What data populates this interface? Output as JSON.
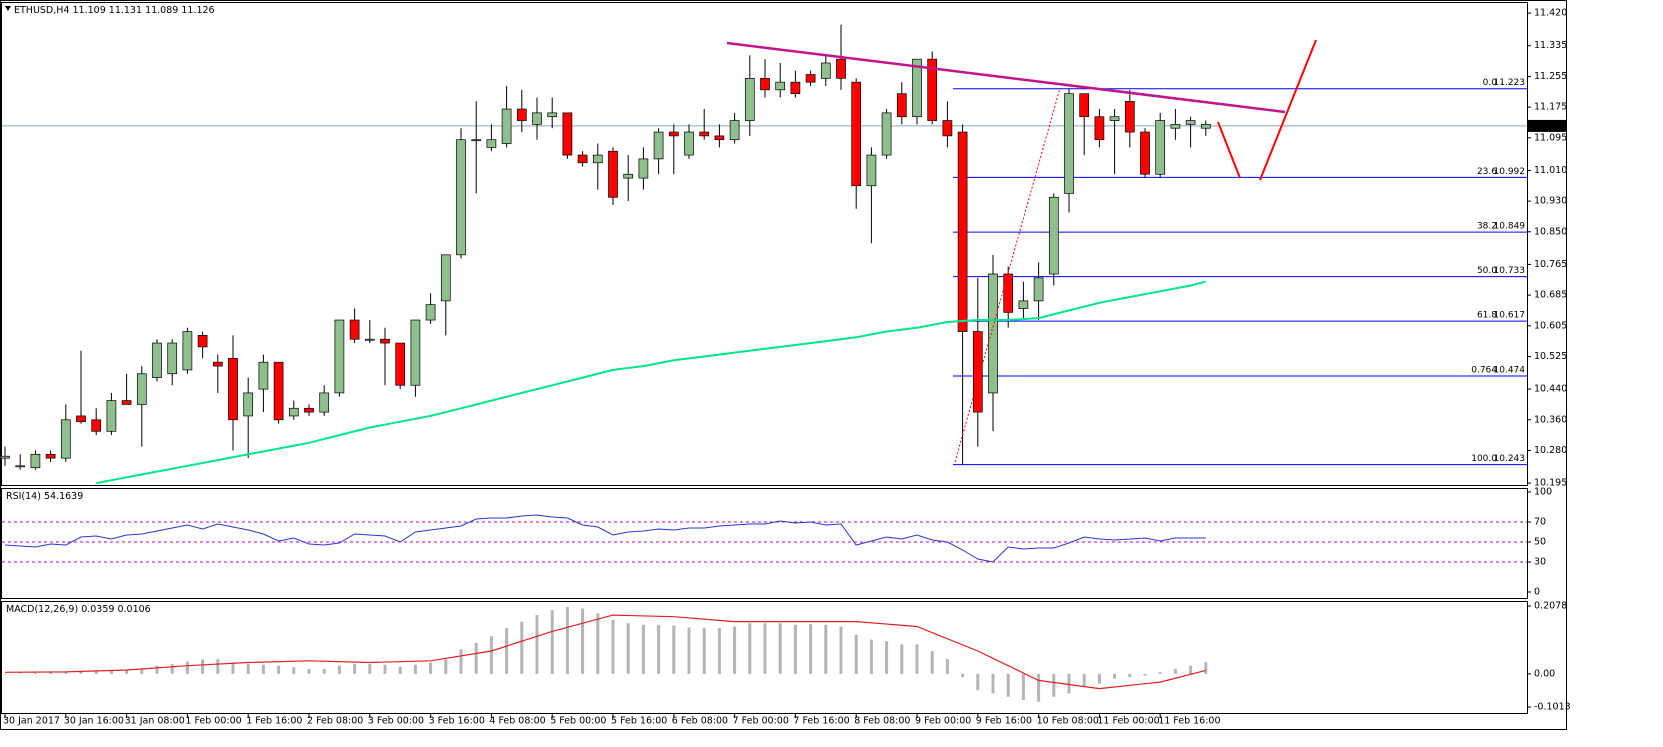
{
  "chart_data": [
    {
      "type": "candlestick",
      "symbol": "ETHUSD,H4",
      "header_ohlc": [
        11.109,
        11.131,
        11.089,
        11.126
      ],
      "categories": [
        "30 Jan 2017",
        null,
        null,
        null,
        "30 Jan 16:00",
        null,
        null,
        null,
        "31 Jan 08:00",
        null,
        null,
        null,
        "1 Feb 00:00",
        null,
        null,
        null,
        "1 Feb 16:00",
        null,
        null,
        null,
        "2 Feb 08:00",
        null,
        null,
        null,
        "3 Feb 00:00",
        null,
        null,
        null,
        "3 Feb 16:00",
        null,
        null,
        null,
        "4 Feb 08:00",
        null,
        null,
        null,
        "5 Feb 00:00",
        null,
        null,
        null,
        "5 Feb 16:00",
        null,
        null,
        null,
        "6 Feb 08:00",
        null,
        null,
        null,
        "7 Feb 00:00",
        null,
        null,
        null,
        "7 Feb 16:00",
        null,
        null,
        null,
        "8 Feb 08:00",
        null,
        null,
        null,
        "9 Feb 00:00",
        null,
        null,
        null,
        "9 Feb 16:00",
        null,
        null,
        null,
        "10 Feb 08:00",
        null,
        null,
        null,
        "11 Feb 00:00",
        null,
        null,
        null,
        "11 Feb 16:00",
        null,
        null,
        null
      ],
      "open": [
        10.26,
        10.24,
        10.235,
        10.27,
        10.26,
        10.37,
        10.36,
        10.33,
        10.41,
        10.4,
        10.47,
        10.48,
        10.49,
        10.58,
        10.51,
        10.52,
        10.37,
        10.44,
        10.51,
        10.37,
        10.39,
        10.38,
        10.43,
        10.62,
        10.57,
        10.57,
        10.56,
        10.45,
        10.62,
        10.67,
        10.79,
        11.09,
        11.07,
        11.08,
        11.17,
        11.13,
        11.15,
        11.16,
        11.05,
        11.03,
        11.06,
        10.99,
        10.99,
        11.04,
        11.11,
        11.05,
        11.11,
        11.1,
        11.09,
        11.14,
        11.25,
        11.22,
        11.24,
        11.26,
        11.25,
        11.3,
        11.24,
        10.97,
        11.05,
        11.21,
        11.15,
        11.3,
        11.14,
        11.11,
        10.59,
        10.43,
        10.74,
        10.65,
        10.67,
        10.74,
        10.95,
        11.21,
        11.15,
        11.14,
        11.19,
        11.11,
        11.0,
        11.12,
        11.13,
        11.12
      ],
      "high": [
        10.29,
        10.27,
        10.28,
        10.28,
        10.4,
        10.54,
        10.39,
        10.43,
        10.48,
        10.5,
        10.57,
        10.57,
        10.6,
        10.59,
        10.53,
        10.58,
        10.47,
        10.53,
        10.51,
        10.41,
        10.4,
        10.45,
        10.62,
        10.65,
        10.62,
        10.6,
        10.56,
        10.62,
        10.69,
        10.79,
        11.12,
        11.19,
        11.13,
        11.23,
        11.22,
        11.2,
        11.2,
        11.16,
        11.06,
        11.08,
        11.07,
        11.05,
        11.07,
        11.12,
        11.13,
        11.13,
        11.17,
        11.13,
        11.16,
        11.31,
        11.3,
        11.29,
        11.27,
        11.27,
        11.31,
        11.39,
        11.25,
        11.07,
        11.17,
        11.24,
        11.3,
        11.32,
        11.19,
        11.13,
        10.73,
        10.79,
        10.76,
        10.72,
        10.77,
        10.95,
        11.223,
        11.21,
        11.17,
        11.17,
        11.22,
        11.12,
        11.16,
        11.17,
        11.15,
        11.14
      ],
      "low": [
        10.24,
        10.23,
        10.23,
        10.25,
        10.25,
        10.35,
        10.32,
        10.32,
        10.4,
        10.29,
        10.46,
        10.45,
        10.48,
        10.52,
        10.43,
        10.28,
        10.26,
        10.38,
        10.35,
        10.36,
        10.37,
        10.37,
        10.42,
        10.56,
        10.56,
        10.45,
        10.44,
        10.42,
        10.61,
        10.58,
        10.78,
        10.95,
        11.06,
        11.07,
        11.11,
        11.09,
        11.12,
        11.04,
        11.02,
        10.96,
        10.92,
        10.93,
        10.96,
        11.0,
        11.0,
        11.04,
        11.09,
        11.07,
        11.08,
        11.1,
        11.2,
        11.2,
        11.2,
        11.23,
        11.23,
        11.22,
        10.91,
        10.82,
        11.04,
        11.13,
        11.13,
        11.13,
        11.07,
        10.243,
        10.29,
        10.33,
        10.6,
        10.62,
        10.62,
        10.71,
        10.9,
        11.05,
        11.07,
        11.0,
        11.07,
        10.99,
        10.99,
        11.09,
        11.07,
        11.1
      ],
      "close": [
        10.265,
        10.24,
        10.27,
        10.26,
        10.36,
        10.355,
        10.33,
        10.41,
        10.4,
        10.48,
        10.56,
        10.56,
        10.59,
        10.55,
        10.5,
        10.36,
        10.43,
        10.51,
        10.36,
        10.39,
        10.38,
        10.43,
        10.62,
        10.57,
        10.57,
        10.56,
        10.45,
        10.62,
        10.66,
        10.79,
        11.09,
        11.09,
        11.09,
        11.17,
        11.14,
        11.16,
        11.16,
        11.05,
        11.03,
        11.05,
        10.94,
        11.0,
        11.04,
        11.11,
        11.1,
        11.11,
        11.1,
        11.09,
        11.14,
        11.25,
        11.22,
        11.24,
        11.21,
        11.24,
        11.29,
        11.25,
        10.97,
        11.05,
        11.16,
        11.15,
        11.3,
        11.14,
        11.1,
        10.59,
        10.38,
        10.74,
        10.64,
        10.67,
        10.73,
        10.94,
        11.21,
        11.15,
        11.09,
        11.15,
        11.11,
        11.0,
        11.14,
        11.13,
        11.14,
        11.13
      ],
      "bull_color": "#8fbf8f",
      "bear_color": "#ff0000",
      "ylim": [
        10.19,
        11.449
      ],
      "yticks": [
        {
          "value": 11.42,
          "label": "11.420"
        },
        11.335,
        11.255,
        11.175,
        11.095,
        {
          "value": 11.01,
          "label": "11.010"
        },
        {
          "value": 10.93,
          "label": "10.930"
        },
        {
          "value": 10.85,
          "label": "10.850"
        },
        10.765,
        10.685,
        10.605,
        10.525,
        {
          "value": 10.44,
          "label": "10.440"
        },
        {
          "value": 10.36,
          "label": "10.360"
        },
        {
          "value": 10.28,
          "label": "10.280"
        },
        10.195
      ],
      "last_price": 11.126,
      "ma": {
        "color": "#00e68a",
        "x": [
          6,
          8,
          10,
          12,
          14,
          16,
          18,
          20,
          22,
          24,
          26,
          28,
          30,
          32,
          34,
          36,
          38,
          40,
          42,
          44,
          46,
          48,
          50,
          52,
          54,
          56,
          58,
          60,
          62,
          64,
          66,
          68,
          70,
          72,
          74,
          76,
          78,
          79
        ],
        "values": [
          10.195,
          10.21,
          10.225,
          10.24,
          10.255,
          10.27,
          10.285,
          10.3,
          10.32,
          10.34,
          10.355,
          10.37,
          10.39,
          10.41,
          10.43,
          10.45,
          10.47,
          10.49,
          10.5,
          10.515,
          10.525,
          10.535,
          10.545,
          10.555,
          10.565,
          10.575,
          10.59,
          10.6,
          10.615,
          10.62,
          10.62,
          10.625,
          10.645,
          10.665,
          10.68,
          10.695,
          10.71,
          10.72
        ]
      },
      "fib_color": "#0000ff",
      "fib": [
        {
          "level": "0.0",
          "value": 11.223
        },
        {
          "level": "23.6",
          "value": 10.992
        },
        {
          "level": "38.2",
          "value": 10.849
        },
        {
          "level": "50.0",
          "value": 10.733
        },
        {
          "level": "61.8",
          "value": 10.617
        },
        {
          "level": "0.764",
          "value": 10.474
        },
        {
          "level": "100.0",
          "value": 10.243
        }
      ]
    },
    {
      "type": "line",
      "title": "RSI(14)",
      "last_value": 54.1639,
      "color": "#2a35d0",
      "values": [
        47,
        46,
        45,
        48,
        47,
        55,
        56,
        53,
        57,
        58,
        61,
        64,
        67,
        63,
        68,
        65,
        62,
        58,
        51,
        54,
        48,
        47,
        49,
        58,
        57,
        56,
        50,
        60,
        62,
        64,
        66,
        73,
        74,
        74,
        76,
        77,
        75,
        74,
        67,
        65,
        57,
        60,
        61,
        63,
        62,
        64,
        64,
        66,
        67,
        68,
        68,
        71,
        69,
        70,
        67,
        68,
        47,
        51,
        55,
        53,
        57,
        52,
        50,
        42,
        33,
        30,
        45,
        43,
        44,
        44,
        49,
        55,
        53,
        52,
        53,
        54,
        51,
        54,
        54,
        54
      ],
      "ylim": [
        -6,
        104
      ],
      "yticks": [
        0,
        30,
        50,
        70,
        100
      ],
      "levels": [
        30,
        50,
        70
      ],
      "level_color": "#c000c0"
    },
    {
      "type": "macd",
      "title": "MACD(12,26,9)",
      "last_values": [
        0.0359,
        0.0106
      ],
      "color": "#b4b4b4",
      "values": [
        0.0,
        0.002,
        0.003,
        0.004,
        0.006,
        0.008,
        0.008,
        0.01,
        0.012,
        0.016,
        0.025,
        0.03,
        0.038,
        0.044,
        0.045,
        0.035,
        0.03,
        0.028,
        0.025,
        0.02,
        0.015,
        0.015,
        0.025,
        0.03,
        0.03,
        0.028,
        0.022,
        0.028,
        0.035,
        0.045,
        0.075,
        0.095,
        0.115,
        0.14,
        0.16,
        0.18,
        0.195,
        0.205,
        0.2,
        0.185,
        0.165,
        0.155,
        0.15,
        0.15,
        0.148,
        0.142,
        0.14,
        0.14,
        0.145,
        0.155,
        0.155,
        0.155,
        0.15,
        0.152,
        0.15,
        0.145,
        0.12,
        0.105,
        0.1,
        0.09,
        0.09,
        0.07,
        0.045,
        -0.01,
        -0.05,
        -0.06,
        -0.07,
        -0.08,
        -0.085,
        -0.07,
        -0.06,
        -0.04,
        -0.03,
        -0.015,
        -0.01,
        -0.005,
        0.005,
        0.015,
        0.025,
        0.0359
      ],
      "signal": {
        "color": "#e02020",
        "x": [
          0,
          4,
          8,
          12,
          16,
          20,
          24,
          28,
          32,
          36,
          40,
          44,
          48,
          52,
          56,
          60,
          64,
          68,
          72,
          76,
          79
        ],
        "values": [
          0.005,
          0.006,
          0.012,
          0.025,
          0.035,
          0.04,
          0.035,
          0.04,
          0.07,
          0.13,
          0.18,
          0.175,
          0.16,
          0.16,
          0.16,
          0.145,
          0.07,
          -0.02,
          -0.045,
          -0.025,
          0.0106
        ]
      },
      "ylim": [
        -0.1197,
        0.2231
      ],
      "yticks": [
        0.2078,
        {
          "value": 0,
          "label": "0.00"
        },
        -0.1013
      ]
    }
  ]
}
